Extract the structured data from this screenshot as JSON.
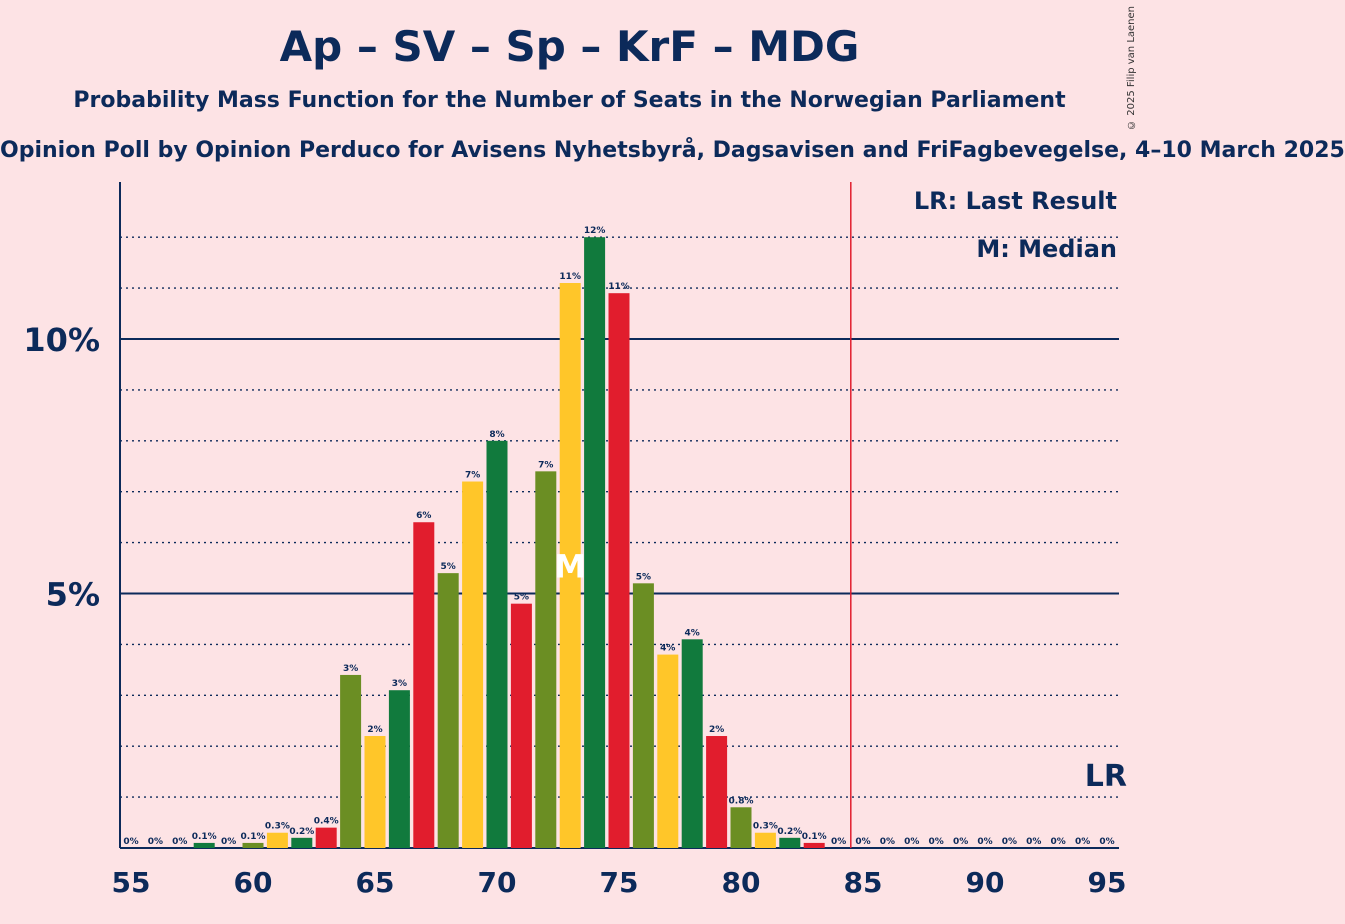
{
  "title": "Ap – SV – Sp – KrF – MDG",
  "subtitle": "Probability Mass Function for the Number of Seats in the Norwegian Parliament",
  "source": "Opinion Poll by Opinion Perduco for Avisens Nyhetsbyrå, Dagsavisen and FriFagbevegelse, 4–10 March 2025",
  "copyright": "© 2025 Filip van Laenen",
  "chart_data": {
    "type": "bar",
    "x": [
      55,
      56,
      57,
      58,
      59,
      60,
      61,
      62,
      63,
      64,
      65,
      66,
      67,
      68,
      69,
      70,
      71,
      72,
      73,
      74,
      75,
      76,
      77,
      78,
      79,
      80,
      81,
      82,
      83,
      84,
      85,
      86,
      87,
      88,
      89,
      90,
      91,
      92,
      93,
      94,
      95
    ],
    "values": [
      0,
      0,
      0,
      0.1,
      0,
      0.1,
      0.3,
      0.2,
      0.4,
      3.4,
      2.2,
      3.1,
      6.4,
      5.4,
      7.2,
      8.0,
      4.8,
      7.4,
      11.1,
      12.0,
      10.9,
      5.2,
      3.8,
      4.1,
      2.2,
      0.8,
      0.3,
      0.2,
      0.1,
      0,
      0,
      0,
      0,
      0,
      0,
      0,
      0,
      0,
      0,
      0,
      0
    ],
    "labels": [
      "0%",
      "0%",
      "0%",
      "0.1%",
      "0%",
      "0.1%",
      "0.3%",
      "0.2%",
      "0.4%",
      "3%",
      "2%",
      "3%",
      "6%",
      "5%",
      "7%",
      "8%",
      "5%",
      "7%",
      "11%",
      "12%",
      "11%",
      "5%",
      "4%",
      "4%",
      "2%",
      "0.8%",
      "0.3%",
      "0.2%",
      "0.1%",
      "0%",
      "0%",
      "0%",
      "0%",
      "0%",
      "0%",
      "0%",
      "0%",
      "0%",
      "0%",
      "0%",
      "0%"
    ],
    "bar_colors": [
      "#e11d2d",
      "#6b8e23",
      "#ffc629",
      "#117a3d"
    ],
    "xlim": [
      55,
      95
    ],
    "ylim": [
      0,
      13
    ],
    "x_ticks": [
      "55",
      "60",
      "65",
      "70",
      "75",
      "80",
      "85",
      "90",
      "95"
    ],
    "y_ticks": [
      {
        "value": 5,
        "label": "5%"
      },
      {
        "value": 10,
        "label": "10%"
      }
    ],
    "grid": "dotted lines every 1%",
    "last_result": 85,
    "median": 73,
    "median_mark": "M",
    "lr_mark": "LR",
    "legend": {
      "placement": "top-right",
      "items": [
        "LR: Last Result",
        "M: Median"
      ]
    },
    "colors": {
      "background": "#fde3e5",
      "text": "#0c2a5a",
      "last_result_line": "#e11d2d"
    }
  }
}
